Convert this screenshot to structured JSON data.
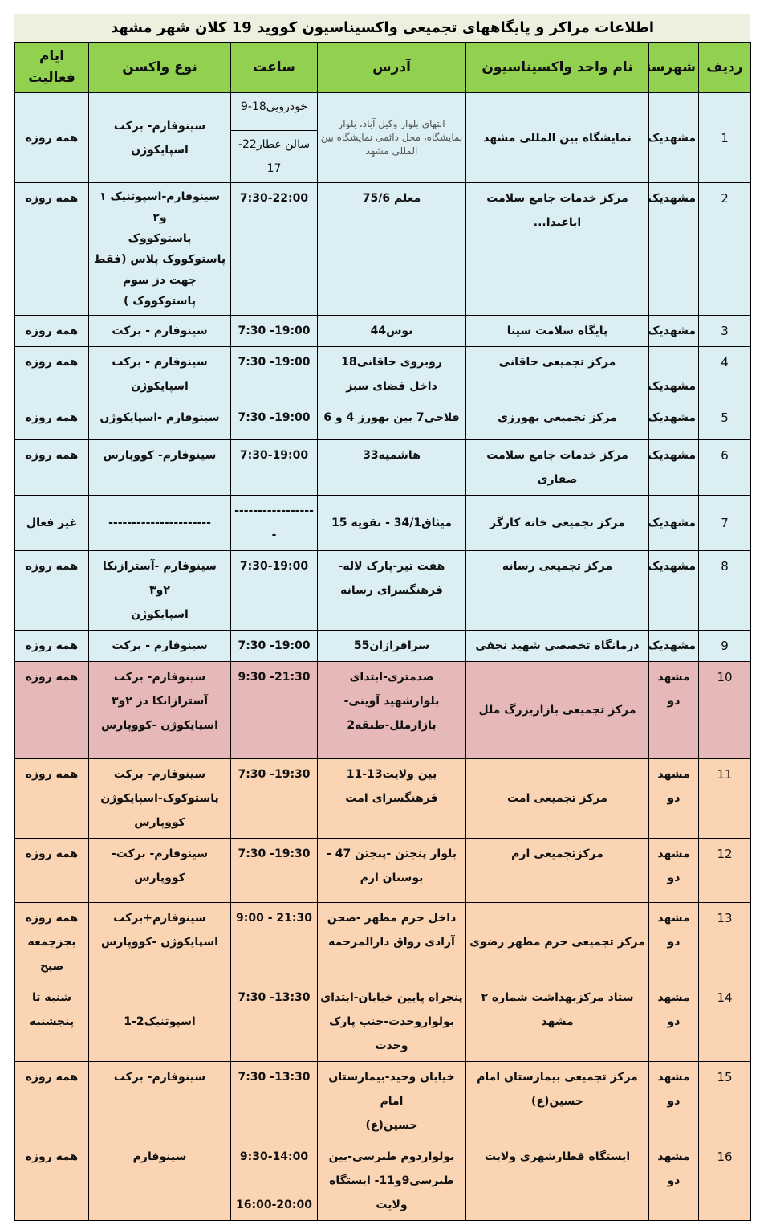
{
  "title": "اطلاعات مراکز و پایگاههای تجمیعی واکسیناسیون کووید 19 کلان شهر مشهد",
  "headers": [
    "ردیف",
    "شهرستان",
    "نام واحد واکسیناسیون",
    "آدرس",
    "ساعت",
    "نوع واکسن",
    "ایام فعالیت"
  ],
  "colors": {
    "title_bg": "#ebf1de",
    "header_bg": "#92d050",
    "mashhad_yek_bg": "#daeef3",
    "mall_bg": "#e6b8b7",
    "mashhad_do_bg": "#fbd4b4"
  },
  "rows": [
    {
      "num": "1",
      "city": "مشهدیک",
      "name": "نمایشگاه بین المللی مشهد",
      "address": "انتهاي بلوار وکیل آباد، بلوار نمایشگاه، محل دائمی نمایشگاه بین المللی مشهد",
      "hours": [
        "خودرویی18-9",
        "سالن عطار22-\n17"
      ],
      "vaccine": "سینوفارم- برکت\nاسپایکوژن",
      "days": "همه روزه"
    },
    {
      "num": "2",
      "city": "مشهدیک",
      "name": "مرکز خدمات جامع سلامت\nاباعبدا...",
      "address": "معلم 75/6",
      "hours": [
        "7:30-22:00"
      ],
      "vaccine": "سینوفارم-اسپوتنیک ۱ و۲\nپاستوکووک\nپاستوکووک پلاس (فقط جهت دز سوم پاستوکووک )",
      "days": "همه روزه"
    },
    {
      "num": "3",
      "city": "مشهدیک",
      "name": "پایگاه سلامت سینا",
      "address": "توس44",
      "hours": [
        "7:30 -19:00"
      ],
      "vaccine": "سینوفارم - برکت",
      "days": "همه روزه"
    },
    {
      "num": "4",
      "city": "مشهدیک",
      "name": "مرکز تجمیعی خاقانی",
      "address": "روبروی خاقانی18\nداخل فضای سبز",
      "hours": [
        "7:30 -19:00"
      ],
      "vaccine": "سینوفارم - برکت\nاسپایکوژن",
      "days": "همه روزه"
    },
    {
      "num": "5",
      "city": "مشهدیک",
      "name": "مرکز تجمیعی بهورزی",
      "address": "فلاحی7 بین بهورز 4 و 6",
      "hours": [
        "7:30 -19:00"
      ],
      "vaccine": "سینوفارم -اسپایکوژن",
      "days": "همه روزه"
    },
    {
      "num": "6",
      "city": "مشهدیک",
      "name": "مرکز خدمات جامع سلامت صفاری",
      "address": "هاشمیه33",
      "hours": [
        "7:30-19:00"
      ],
      "vaccine": "سینوفارم- کووپارس",
      "days": "همه روزه"
    },
    {
      "num": "7",
      "city": "مشهدیک",
      "name": "مرکز تجمیعی خانه کارگر",
      "address": "میثاق34/1 - تقویه 15",
      "hours": [
        "------------------"
      ],
      "vaccine": "----------------------",
      "days": "غیر فعال"
    },
    {
      "num": "8",
      "city": "مشهدیک",
      "name": "مرکز تجمیعی رسانه",
      "address": "هفت تیر-پارک لاله-\nفرهنگسرای رسانه",
      "hours": [
        "7:30-19:00"
      ],
      "vaccine": "سینوفارم -آسترازنکا ۲و۳\nاسپایکوژن",
      "days": "همه روزه"
    },
    {
      "num": "9",
      "city": "مشهدیک",
      "name": "درمانگاه تخصصی شهید نجفی",
      "address": "سرافرازان55",
      "hours": [
        "7:30 -19:00"
      ],
      "vaccine": "سینوفارم - برکت",
      "days": "همه روزه"
    },
    {
      "num": "10",
      "city": "مشهد دو",
      "name": "مرکز تجمیعی بازاربزرگ ملل",
      "address": "صدمتری-ابتدای بلوارشهید آوینی-بازارملل-طبقه2",
      "hours": [
        "9:30 -21:30"
      ],
      "vaccine": "سینوفارم- برکت\nآسترازانکا دز ۲و۳\nاسپایکوژن -کووپارس",
      "days": "همه روزه"
    },
    {
      "num": "11",
      "city": "مشهد دو",
      "name": "مرکز تجمیعی امت",
      "address": "بین ولایت13-11\nفرهنگسرای امت",
      "hours": [
        "7:30 -19:30"
      ],
      "vaccine": "سینوفارم- برکت\nپاستوکوک-اسپایکوژن\nکووپارس",
      "days": "همه روزه"
    },
    {
      "num": "12",
      "city": "مشهد دو",
      "name": "مرکزتجمیعی ارم",
      "address": "بلوار پنجتن -پنجتن 47 -\nبوستان ارم",
      "hours": [
        "7:30 -19:30"
      ],
      "vaccine": "سینوفارم- برکت-\nکووپارس",
      "days": "همه روزه"
    },
    {
      "num": "13",
      "city": "مشهد دو",
      "name": "مرکز تجمیعی حرم مطهر رضوی",
      "address": "داخل حرم مطهر -صحن\nآزادی رواق دارالمرحمه",
      "hours": [
        "9:00 - 21:30"
      ],
      "vaccine": "سینوفارم+برکت\nاسپایکوژن -کووپارس",
      "days": "همه روزه\nبجزجمعه\nصبح"
    },
    {
      "num": "14",
      "city": "مشهد دو",
      "name": "ستاد مرکزبهداشت شماره ۲ مشهد",
      "address": "پنجراه پایین خیابان-ابتدای\nبولواروحدت-جنب پارک\nوحدت",
      "hours": [
        "7:30 -13:30"
      ],
      "vaccine": "اسپوتنیک2-1",
      "days": "شنبه تا\nپنجشنبه"
    },
    {
      "num": "15",
      "city": "مشهد دو",
      "name": "مرکز  تجمیعی بیمارستان امام\nحسین(ع)",
      "address": "خیابان وحید-بیمارستان امام\nحسین(ع)",
      "hours": [
        "7:30 -13:30"
      ],
      "vaccine": "سینوفارم- برکت",
      "days": "همه روزه"
    },
    {
      "num": "16",
      "city": "مشهد دو",
      "name": "ایستگاه قطارشهری ولایت",
      "address": "بولواردوم طبرسی-بین\nطبرسی9و11- ایستگاه\nولایت",
      "hours": [
        "9:30-14:00\n\n16:00-20:00"
      ],
      "vaccine": "سینوفارم",
      "days": "همه روزه"
    }
  ]
}
